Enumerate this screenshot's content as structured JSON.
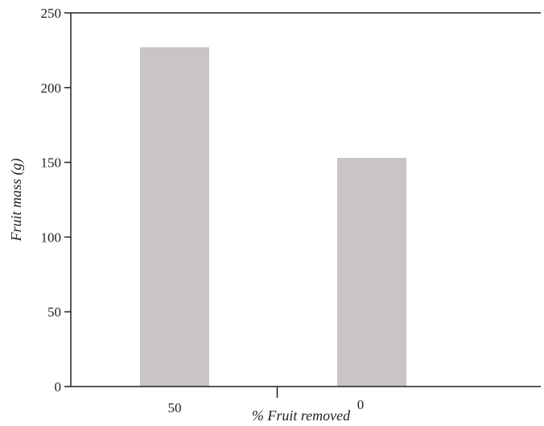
{
  "chart_data": {
    "type": "bar",
    "categories": [
      "50",
      "0"
    ],
    "values": [
      227,
      153
    ],
    "xlabel": "% Fruit removed",
    "ylabel": "Fruit mass (g)",
    "ylim": [
      0,
      250
    ],
    "yticks": [
      0,
      50,
      100,
      150,
      200,
      250
    ],
    "grid": false,
    "colors": {
      "bar": "#c8c4c7",
      "axis": "#222222"
    }
  }
}
